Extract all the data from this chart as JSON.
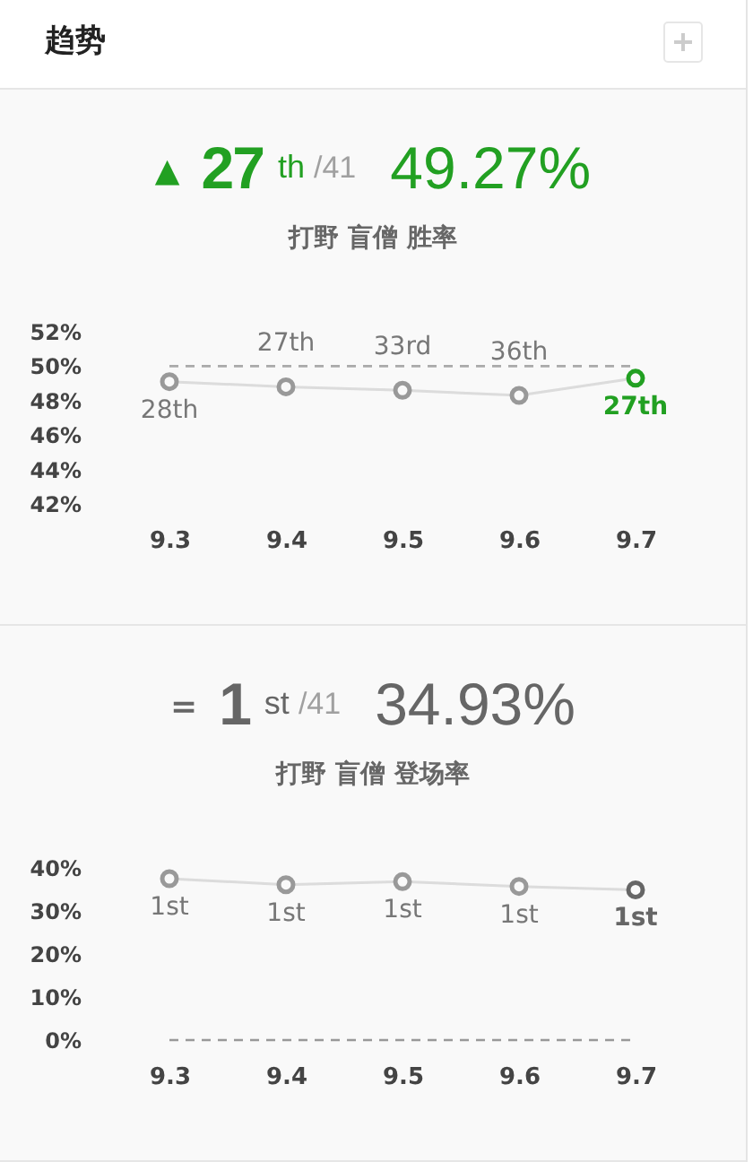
{
  "chart_data": [
    {
      "type": "other",
      "title": "趋势"
    },
    {
      "type": "line",
      "title": "打野 盲僧 胜率",
      "annotations": [
        "▲",
        "27",
        "th",
        "/41",
        "49.27%",
        {
          "text": "28th",
          "x": "9.3",
          "y": 49.1
        },
        {
          "text": "27th",
          "x": "9.4",
          "y": 48.8
        },
        {
          "text": "33rd",
          "x": "9.5",
          "y": 48.6
        },
        {
          "text": "36th",
          "x": "9.6",
          "y": 48.3
        },
        {
          "text": "27th",
          "x": "9.7",
          "y": 49.3
        }
      ],
      "categories": [
        "9.3",
        "9.4",
        "9.5",
        "9.6",
        "9.7"
      ],
      "series": [
        {
          "color": "#999999",
          "colors": [
            "#999999",
            "#999999",
            "#999999",
            "#999999",
            "#22a022"
          ],
          "values": [
            49.1,
            48.8,
            48.6,
            48.3,
            49.3
          ]
        }
      ],
      "ylim": [
        42,
        52
      ],
      "yticks": [
        {
          "value": 42,
          "label": "42%"
        },
        {
          "value": 44,
          "label": "44%"
        },
        {
          "value": 46,
          "label": "46%"
        },
        {
          "value": 48,
          "label": "48%"
        },
        {
          "value": 50,
          "label": "50%"
        },
        {
          "value": 52,
          "label": "52%"
        }
      ],
      "ref_lines": [
        {
          "axis": "y",
          "value": 50,
          "color": "#aaaaaa",
          "line_style": "dashed"
        }
      ],
      "marker": "circle",
      "line_style": "solid"
    },
    {
      "type": "line",
      "title": "打野 盲僧 登场率",
      "annotations": [
        "=",
        "1",
        "st",
        "/41",
        "34.93%",
        {
          "text": "1st",
          "x": "9.3",
          "y": 37.5
        },
        {
          "text": "1st",
          "x": "9.4",
          "y": 36.1
        },
        {
          "text": "1st",
          "x": "9.5",
          "y": 36.8
        },
        {
          "text": "1st",
          "x": "9.6",
          "y": 35.7
        },
        {
          "text": "1st",
          "x": "9.7",
          "y": 34.9
        }
      ],
      "categories": [
        "9.3",
        "9.4",
        "9.5",
        "9.6",
        "9.7"
      ],
      "series": [
        {
          "color": "#999999",
          "colors": [
            "#999999",
            "#999999",
            "#999999",
            "#999999",
            "#666666"
          ],
          "values": [
            37.5,
            36.1,
            36.8,
            35.7,
            34.9
          ]
        }
      ],
      "ylim": [
        0,
        40
      ],
      "yticks": [
        {
          "value": 0,
          "label": "0%"
        },
        {
          "value": 10,
          "label": "10%"
        },
        {
          "value": 20,
          "label": "20%"
        },
        {
          "value": 30,
          "label": "30%"
        },
        {
          "value": 40,
          "label": "40%"
        }
      ],
      "ref_lines": [
        {
          "axis": "y",
          "value": 0,
          "color": "#999999",
          "line_style": "dashed"
        }
      ],
      "marker": "circle",
      "line_style": "solid"
    }
  ]
}
